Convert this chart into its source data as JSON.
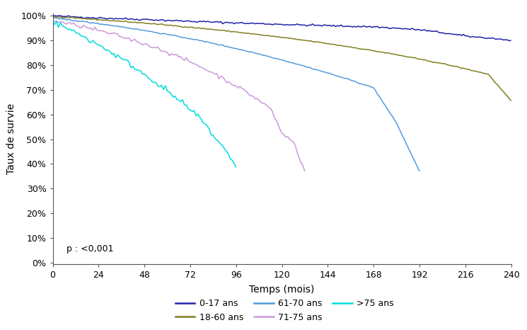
{
  "title": "",
  "xlabel": "Temps (mois)",
  "ylabel": "Taux de survie",
  "xlim": [
    0,
    240
  ],
  "ylim": [
    -0.005,
    1.01
  ],
  "xticks": [
    0,
    24,
    48,
    72,
    96,
    120,
    144,
    168,
    192,
    216,
    240
  ],
  "yticks": [
    0.0,
    0.1,
    0.2,
    0.3,
    0.4,
    0.5,
    0.6,
    0.7,
    0.8,
    0.9,
    1.0
  ],
  "ytick_labels": [
    "0%",
    "10%",
    "20%",
    "30%",
    "40%",
    "50%",
    "60%",
    "70%",
    "80%",
    "90%",
    "100%"
  ],
  "pvalue_text": "p : <0,001",
  "series": {
    "0-17 ans": {
      "color": "#2222aa",
      "points": [
        [
          0,
          1.0
        ],
        [
          6,
          0.997
        ],
        [
          12,
          0.995
        ],
        [
          18,
          0.993
        ],
        [
          24,
          0.991
        ],
        [
          30,
          0.989
        ],
        [
          36,
          0.988
        ],
        [
          42,
          0.986
        ],
        [
          48,
          0.985
        ],
        [
          54,
          0.983
        ],
        [
          60,
          0.981
        ],
        [
          66,
          0.979
        ],
        [
          72,
          0.977
        ],
        [
          78,
          0.976
        ],
        [
          84,
          0.974
        ],
        [
          90,
          0.972
        ],
        [
          96,
          0.971
        ],
        [
          102,
          0.969
        ],
        [
          108,
          0.968
        ],
        [
          114,
          0.966
        ],
        [
          120,
          0.965
        ],
        [
          126,
          0.963
        ],
        [
          132,
          0.962
        ],
        [
          138,
          0.961
        ],
        [
          144,
          0.96
        ],
        [
          150,
          0.958
        ],
        [
          156,
          0.957
        ],
        [
          162,
          0.956
        ],
        [
          168,
          0.955
        ],
        [
          174,
          0.952
        ],
        [
          180,
          0.949
        ],
        [
          186,
          0.946
        ],
        [
          192,
          0.943
        ],
        [
          198,
          0.937
        ],
        [
          204,
          0.931
        ],
        [
          210,
          0.924
        ],
        [
          216,
          0.918
        ],
        [
          222,
          0.913
        ],
        [
          228,
          0.91
        ],
        [
          234,
          0.905
        ],
        [
          240,
          0.9
        ]
      ]
    },
    "18-60 ans": {
      "color": "#808020",
      "points": [
        [
          0,
          0.995
        ],
        [
          12,
          0.99
        ],
        [
          24,
          0.984
        ],
        [
          36,
          0.977
        ],
        [
          48,
          0.97
        ],
        [
          60,
          0.962
        ],
        [
          72,
          0.953
        ],
        [
          84,
          0.944
        ],
        [
          96,
          0.934
        ],
        [
          108,
          0.923
        ],
        [
          120,
          0.912
        ],
        [
          132,
          0.9
        ],
        [
          144,
          0.887
        ],
        [
          156,
          0.873
        ],
        [
          168,
          0.858
        ],
        [
          180,
          0.842
        ],
        [
          192,
          0.824
        ],
        [
          204,
          0.806
        ],
        [
          216,
          0.785
        ],
        [
          228,
          0.763
        ],
        [
          240,
          0.655
        ]
      ]
    },
    "61-70 ans": {
      "color": "#5599dd",
      "points": [
        [
          0,
          0.99
        ],
        [
          12,
          0.98
        ],
        [
          24,
          0.968
        ],
        [
          36,
          0.955
        ],
        [
          48,
          0.94
        ],
        [
          60,
          0.924
        ],
        [
          72,
          0.907
        ],
        [
          84,
          0.888
        ],
        [
          96,
          0.867
        ],
        [
          108,
          0.845
        ],
        [
          120,
          0.821
        ],
        [
          132,
          0.795
        ],
        [
          144,
          0.768
        ],
        [
          156,
          0.739
        ],
        [
          168,
          0.708
        ],
        [
          180,
          0.565
        ],
        [
          192,
          0.37
        ]
      ]
    },
    "71-75 ans": {
      "color": "#cc99dd",
      "points": [
        [
          0,
          0.98
        ],
        [
          6,
          0.971
        ],
        [
          12,
          0.962
        ],
        [
          18,
          0.952
        ],
        [
          24,
          0.94
        ],
        [
          30,
          0.928
        ],
        [
          36,
          0.915
        ],
        [
          42,
          0.901
        ],
        [
          48,
          0.886
        ],
        [
          54,
          0.87
        ],
        [
          60,
          0.852
        ],
        [
          66,
          0.833
        ],
        [
          72,
          0.813
        ],
        [
          78,
          0.791
        ],
        [
          84,
          0.768
        ],
        [
          90,
          0.742
        ],
        [
          96,
          0.716
        ],
        [
          102,
          0.688
        ],
        [
          108,
          0.657
        ],
        [
          114,
          0.625
        ],
        [
          120,
          0.524
        ],
        [
          126,
          0.49
        ],
        [
          132,
          0.37
        ]
      ]
    },
    ">75 ans": {
      "color": "#00dddd",
      "points": [
        [
          0,
          0.975
        ],
        [
          6,
          0.955
        ],
        [
          12,
          0.932
        ],
        [
          18,
          0.908
        ],
        [
          24,
          0.882
        ],
        [
          30,
          0.855
        ],
        [
          36,
          0.826
        ],
        [
          42,
          0.795
        ],
        [
          48,
          0.763
        ],
        [
          54,
          0.73
        ],
        [
          60,
          0.695
        ],
        [
          66,
          0.658
        ],
        [
          72,
          0.619
        ],
        [
          78,
          0.578
        ],
        [
          84,
          0.516
        ],
        [
          88,
          0.48
        ],
        [
          90,
          0.46
        ],
        [
          92,
          0.44
        ],
        [
          94,
          0.415
        ],
        [
          96,
          0.385
        ]
      ]
    }
  },
  "legend_order": [
    "0-17 ans",
    "18-60 ans",
    "61-70 ans",
    "71-75 ans",
    ">75 ans"
  ],
  "legend_cols": 3,
  "background_color": "#ffffff"
}
